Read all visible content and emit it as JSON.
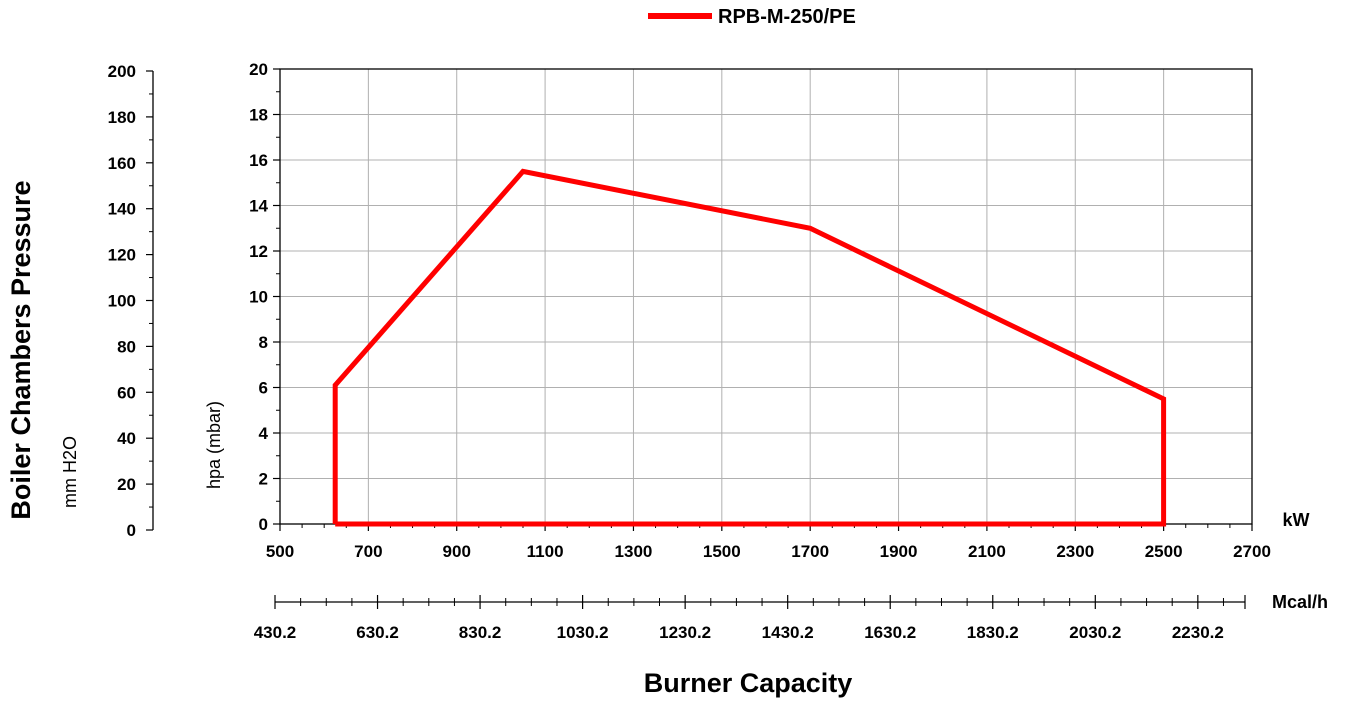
{
  "chart_data": {
    "type": "line",
    "legend": {
      "position": "top-center"
    },
    "series": [
      {
        "name": "RPB-M-250/PE",
        "color": "#ff0000",
        "x": [
          625,
          625,
          1050,
          1700,
          2500,
          2500,
          625
        ],
        "y": [
          0,
          6.1,
          15.5,
          13.0,
          5.5,
          0,
          0
        ]
      }
    ],
    "x_axis": {
      "unit": "kW",
      "range": [
        500,
        2700
      ],
      "ticks": [
        "500",
        "700",
        "900",
        "1100",
        "1300",
        "1500",
        "1700",
        "1900",
        "2100",
        "2300",
        "2500",
        "2700"
      ]
    },
    "x_axis_secondary": {
      "unit": "Mcal/h",
      "range": [
        430.2,
        2322.2
      ],
      "ticks": [
        "430.2",
        "630.2",
        "830.2",
        "1030.2",
        "1230.2",
        "1430.2",
        "1630.2",
        "1830.2",
        "2030.2",
        "2230.2"
      ]
    },
    "y_axis": {
      "label": "hpa (mbar)",
      "range": [
        0,
        20
      ],
      "ticks": [
        "0",
        "2",
        "4",
        "6",
        "8",
        "10",
        "12",
        "14",
        "16",
        "18",
        "20"
      ]
    },
    "y_axis_secondary": {
      "title": "Boiler Chambers Pressure",
      "label": "mm H2O",
      "range": [
        0,
        200
      ],
      "ticks": [
        "0",
        "20",
        "40",
        "60",
        "80",
        "100",
        "120",
        "140",
        "160",
        "180",
        "200"
      ]
    },
    "xlabel": "Burner Capacity",
    "grid": true
  }
}
